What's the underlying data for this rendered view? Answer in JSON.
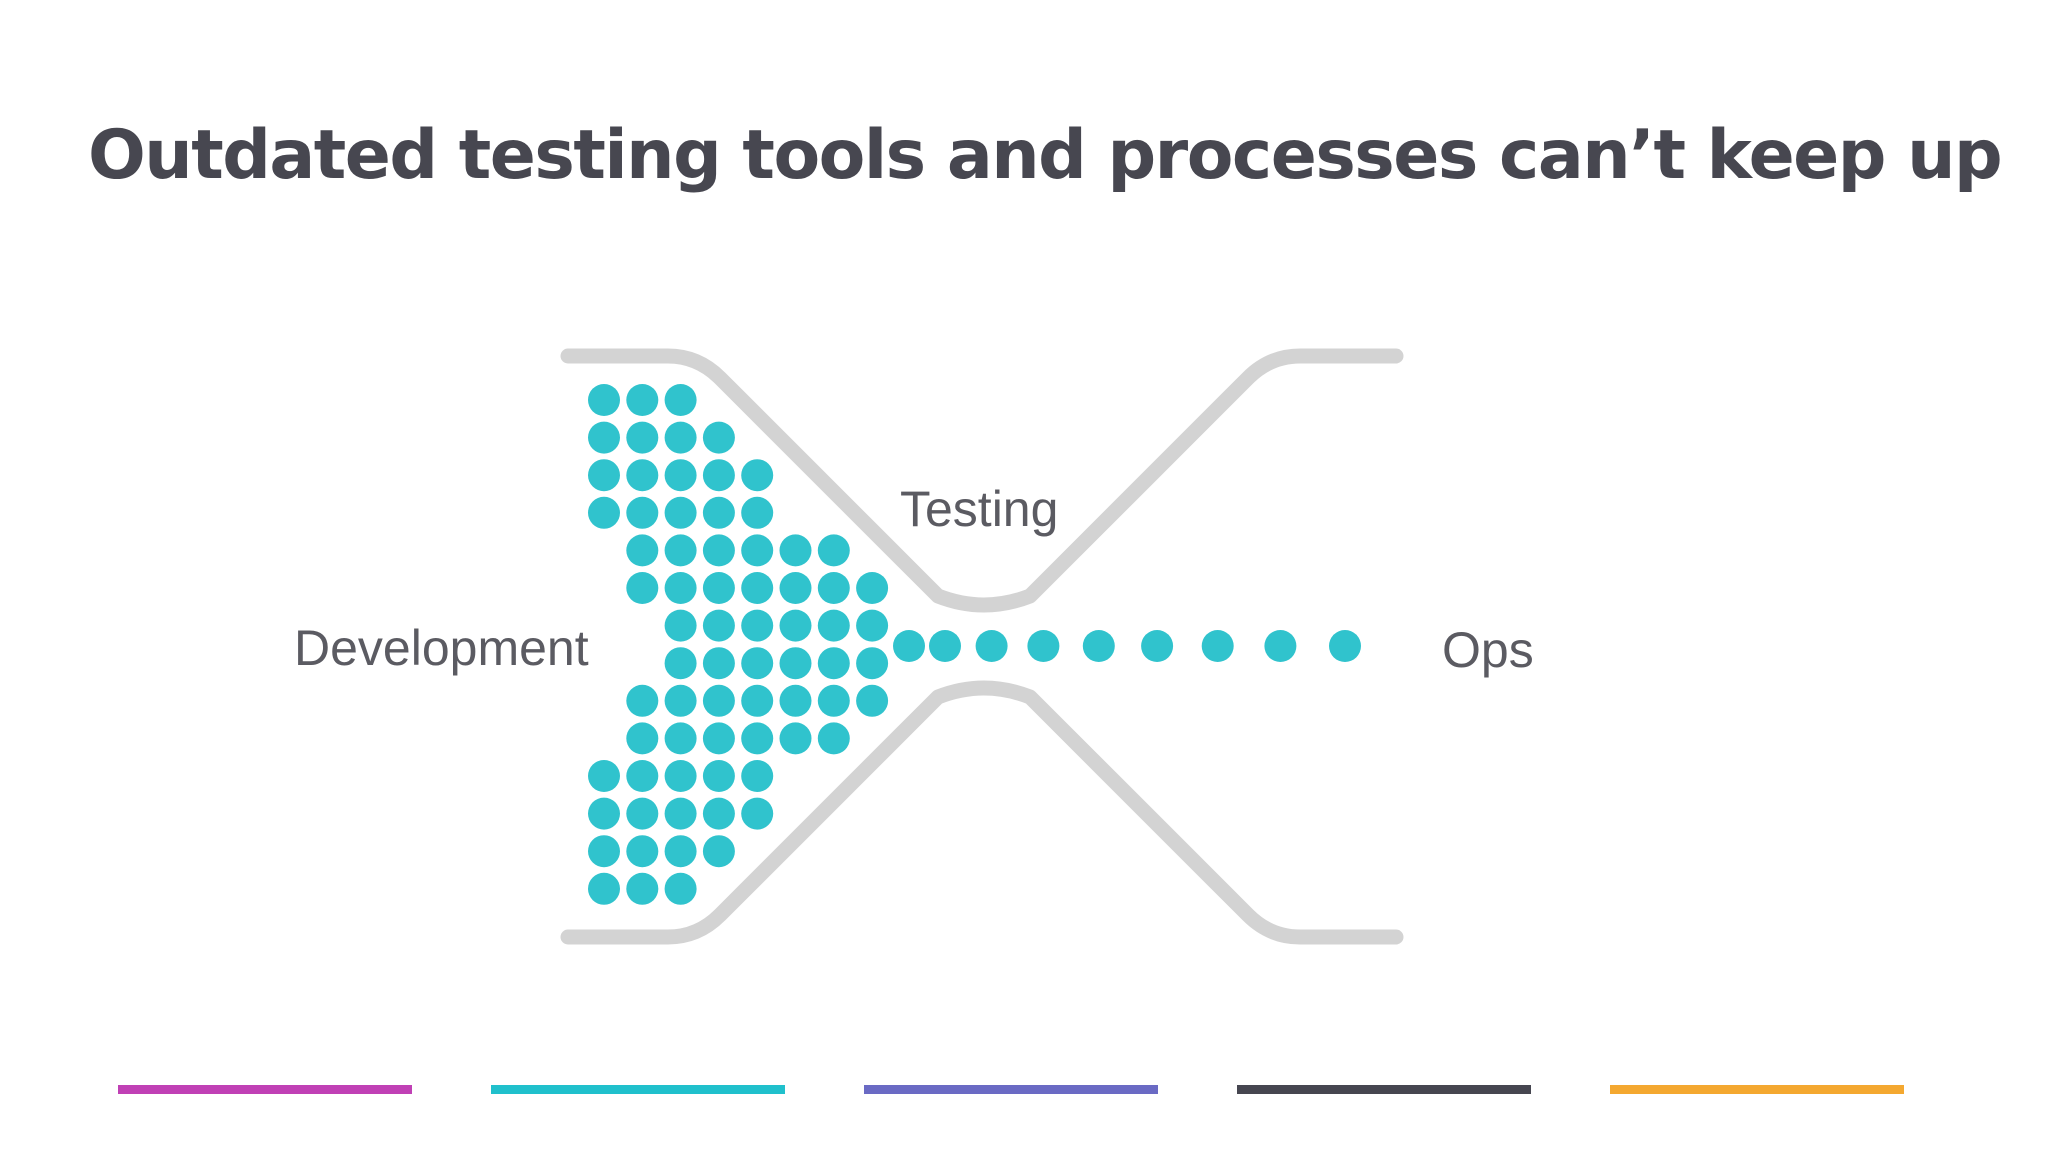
{
  "slide": {
    "title": "Outdated testing tools and processes can’t keep up"
  },
  "diagram": {
    "stages": {
      "development": "Development",
      "testing": "Testing",
      "ops": "Ops"
    },
    "colors": {
      "dot": "#30c3cd",
      "pipe": "#d3d3d3"
    },
    "dot_rows": [
      3,
      4,
      5,
      5,
      6,
      7,
      6,
      6,
      7,
      6,
      5,
      5,
      4,
      3
    ],
    "dots_through_bottleneck": 9
  },
  "color_bars": [
    {
      "color": "#c040b5"
    },
    {
      "color": "#20c0cc"
    },
    {
      "color": "#6a6ac4"
    },
    {
      "color": "#464650"
    },
    {
      "color": "#f4a830"
    }
  ]
}
